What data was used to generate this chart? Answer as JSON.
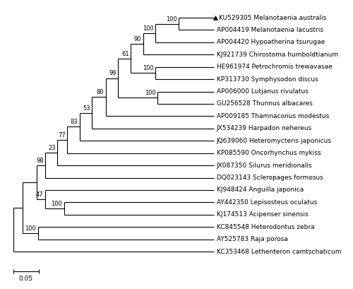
{
  "taxa": [
    "KU529305 Melanotaenia australis",
    "AP004419 Melanotaenia lacustris",
    "AP004420 Hypoatherina tsurugae",
    "KJ921739 Chirostoma humboldtianum",
    "HE961974 Petrochromis trewavasae",
    "KP313730 Symphysodon discus",
    "AP006000 Lutjanus rivulatus",
    "GU256528 Thunnus albacares",
    "AP009185 Thamnaconus modestus",
    "JX534239 Harpadon nehereus",
    "JQ639060 Heteromycteris japonicus",
    "KP085590 Oncorhynchus mykiss",
    "JX087350 Silurus meridionalis",
    "DQ023143 Scleropages formosus",
    "KJ948424 Anguilla japonica",
    "AY442350 Lepisosteus oculatus",
    "KJ174513 Acipenser sinensis",
    "KC845548 Heterodontus zebra",
    "AY525783 Raja porosa",
    "KC353468 Lethenteron camtschaticum"
  ],
  "line_color": "#000000",
  "text_color": "#000000",
  "background_color": "#ffffff",
  "font_size": 6.5,
  "bootstrap_font_size": 6.0,
  "scale_bar_label": "0.05",
  "highlighted_taxon_index": 0
}
